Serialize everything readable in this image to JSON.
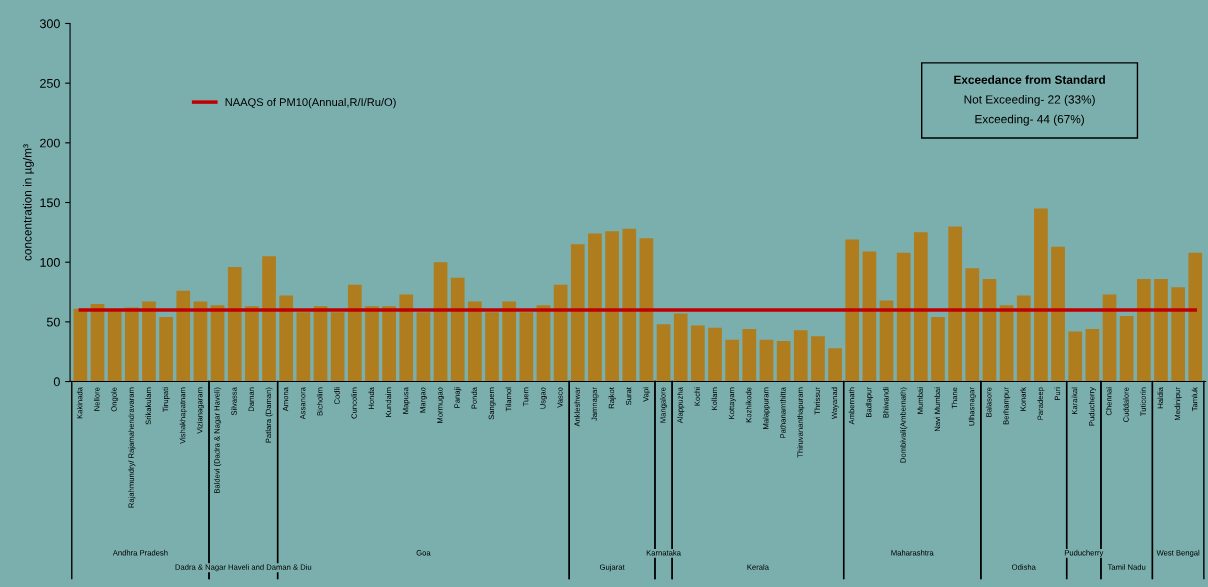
{
  "chart_data": {
    "type": "bar",
    "ylabel": "concentration in µg/m³",
    "categories": [
      "Kakinada",
      "Nellore",
      "Ongole",
      "Rajahmundry/ Rajamahendravaram",
      "Srikakulam",
      "Tirupati",
      "Vishakhapatnam",
      "Vizianagaram",
      "Baldevi (Dadra & Nagar Haveli)",
      "Silvassa",
      "Daman",
      "Patlara (Daman)",
      "Amona",
      "Assanora",
      "Bicholim",
      "Codli",
      "Cuncolim",
      "Honda",
      "Kundaim",
      "Mapusa",
      "Margao",
      "Mormugao",
      "Panaji",
      "Ponda",
      "Sanguem",
      "Tilamol",
      "Tuem",
      "Usgao",
      "Vasco",
      "Ankleshwar",
      "Jamnagar",
      "Rajkot",
      "Surat",
      "Vapi",
      "Mangalore",
      "Alappuzha",
      "Kochi",
      "Kollam",
      "Kottayam",
      "Kozhikode",
      "Malappuram",
      "Pathanamthitta",
      "Thiruvananthapuram",
      "Thrissur",
      "Wayanad",
      "Ambernath",
      "Badlapur",
      "Bhiwandi",
      "Dombivali(Ambernath)",
      "Mumbai",
      "Navi Mumbai",
      "Thane",
      "Ulhasnagar",
      "Balasore",
      "Berhampur",
      "Konark",
      "Paradeep",
      "Puri",
      "Karaikal",
      "Puducherry",
      "Chennai",
      "Cuddalore",
      "Tuticorin",
      "Haldia",
      "Medinipur",
      "Tamluk"
    ],
    "values": [
      61,
      65,
      59,
      62,
      67,
      54,
      76,
      67,
      64,
      96,
      63,
      105,
      72,
      58,
      63,
      58,
      81,
      63,
      63,
      73,
      58,
      100,
      87,
      67,
      58,
      67,
      58,
      64,
      81,
      115,
      124,
      126,
      128,
      120,
      48,
      57,
      47,
      45,
      35,
      44,
      35,
      34,
      43,
      38,
      28,
      119,
      109,
      68,
      108,
      125,
      54,
      130,
      95,
      86,
      64,
      72,
      145,
      113,
      42,
      44,
      73,
      55,
      86,
      86,
      79,
      108
    ],
    "color": "#b07d1e",
    "ylim": [
      0,
      300
    ],
    "yticks": [
      0,
      50,
      100,
      150,
      200,
      250,
      300
    ],
    "grid": false,
    "legend": "top left",
    "ref_lines": [
      {
        "axis": "y",
        "value": 60,
        "label": "NAAQS of PM10(Annual,R/I/Ru/O)",
        "color": "#c00000"
      }
    ],
    "annotations": [
      "Andhra Pradesh",
      "Dadra & Nagar Haveli and Daman & Diu",
      "Goa",
      "Gujarat",
      "Karnataka",
      "Kerala",
      "Maharashtra",
      "Odisha",
      "Puducherry",
      "Tamil Nadu",
      "West Bengal",
      "Exceedance from Standard",
      "Not Exceeding- 22 (33%)",
      "Exceeding- 44 (67%)"
    ]
  }
}
